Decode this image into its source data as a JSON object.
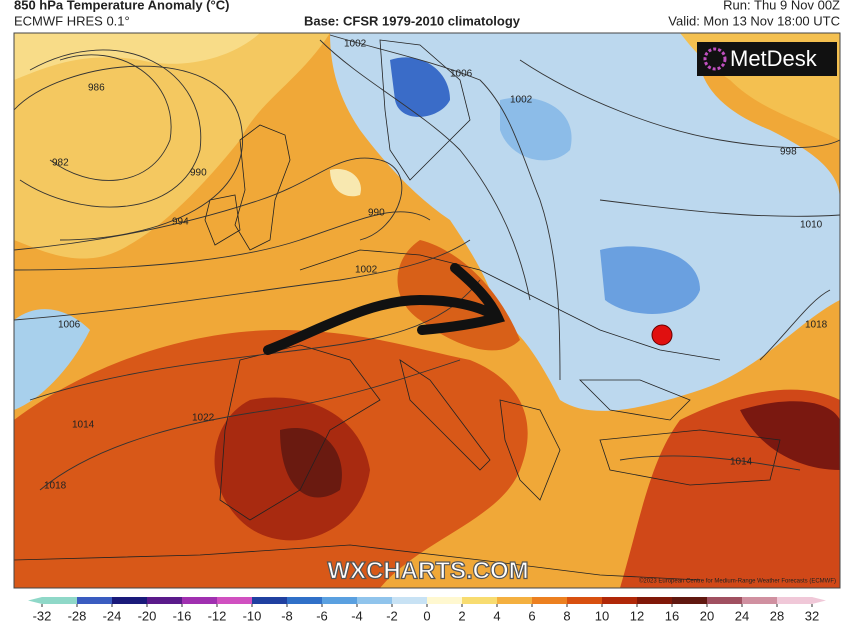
{
  "header": {
    "title": "850 hPa Temperature Anomaly (°C)",
    "model": "ECMWF HRES 0.1°",
    "base": "Base: CFSR 1979-2010 climatology",
    "run": "Run: Thu 9 Nov 00Z",
    "valid": "Valid: Mon 13 Nov 18:00 UTC"
  },
  "map": {
    "brand": "MetDesk",
    "watermark": "WXCHARTS.COM",
    "copyright": "©2023 European Centre for Medium-Range Weather Forecasts (ECMWF)",
    "isobar_labels": [
      "986",
      "982",
      "990",
      "994",
      "1002",
      "1006",
      "1002",
      "990",
      "1002",
      "1006",
      "998",
      "1010",
      "1014",
      "1022",
      "1018",
      "1018",
      "1014"
    ]
  },
  "colorbar": {
    "ticks": [
      -32,
      -28,
      -24,
      -20,
      -16,
      -12,
      -10,
      -8,
      -6,
      -4,
      -2,
      0,
      2,
      4,
      6,
      8,
      10,
      12,
      16,
      20,
      24,
      28,
      32
    ],
    "colors": [
      "#8fd8c8",
      "#3a5cc0",
      "#1a1a7a",
      "#5a1a8a",
      "#a030b0",
      "#d050c0",
      "#2040a0",
      "#3070c8",
      "#5aa0e0",
      "#90c4ec",
      "#c8e2f4",
      "#fff8d0",
      "#f8dc70",
      "#f4b040",
      "#ec8020",
      "#d85010",
      "#b02808",
      "#801808",
      "#601810",
      "#a05060",
      "#d090a0",
      "#f0c8d8"
    ]
  }
}
